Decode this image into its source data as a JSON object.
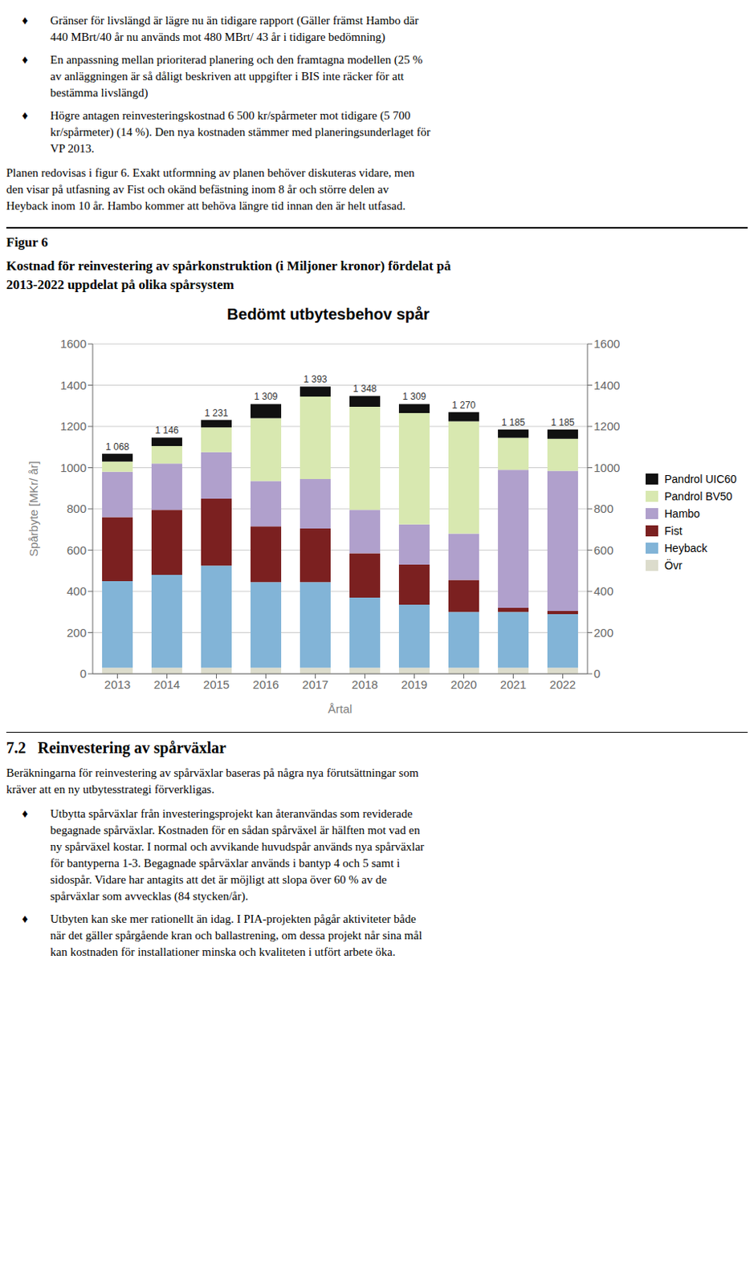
{
  "page_text": {
    "bullet": "♦",
    "bullets_before": [
      "Gränser för livslängd är lägre nu än tidigare rapport (Gäller främst Hambo där\n440 MBrt/40 år nu används mot 480 MBrt/ 43 år i tidigare bedömning)",
      "En anpassning mellan prioriterad planering och den framtagna modellen (25 %\nav anläggningen är så dåligt beskriven att uppgifter i BIS inte räcker för att\nbestämma livslängd)",
      "Högre antagen reinvesteringskostnad 6 500 kr/spårmeter mot tidigare (5 700\nkr/spårmeter) (14 %). Den nya kostnaden stämmer med planeringsunderlaget för\nVP 2013."
    ],
    "paragraph": "Planen redovisas i figur 6. Exakt utformning av planen behöver diskuteras vidare, men\nden visar på utfasning av Fist och okänd befästning inom 8 år och större delen av\nHeyback inom 10 år. Hambo kommer att behöva längre tid innan den är helt utfasad.",
    "figure_label": "Figur 6",
    "caption": [
      "Kostnad för reinvestering av spårkonstruktion (i Miljoner kronor) fördelat på",
      "2013-2022 uppdelat på olika spårsystem"
    ],
    "section_title": "7.2   Reinvestering av spårväxlar",
    "section_paragraph": "Beräkningarna för reinvestering av spårväxlar baseras på några nya förutsättningar som\nkräver att en ny utbytesstrategi förverkligas.",
    "bullets_after": [
      "Utbytta spårväxlar från investeringsprojekt kan återanvändas som reviderade\nbegagnade spårväxlar. Kostnaden för en sådan spårväxel är hälften mot vad en\nny spårväxel kostar. I normal och avvikande huvudspår används nya spårväxlar\nför bantyperna 1-3. Begagnade spårväxlar används i bantyp 4 och 5 samt i\nsidospår. Vidare har antagits att det är möjligt att slopa över 60 % av de\nspårväxlar som avvecklas (84 stycken/år).",
      "Utbyten kan ske mer rationellt än idag. I PIA-projekten pågår aktiviteter både\nnär det gäller spårgående kran och ballastrening, om dessa projekt når sina mål\nkan kostnaden för installationer minska och kvaliteten i utfört arbete öka."
    ]
  },
  "chart_data": {
    "type": "bar",
    "stacked": true,
    "title": "Bedömt utbytesbehov spår",
    "xlabel": "Årtal",
    "ylabel": "Spårbyte [MKr/ år]",
    "categories": [
      2013,
      2014,
      2015,
      2016,
      2017,
      2018,
      2019,
      2020,
      2021,
      2022
    ],
    "series": [
      {
        "name": "Övr",
        "color": "#dcdccc",
        "values": [
          30,
          30,
          30,
          30,
          30,
          30,
          30,
          30,
          30,
          30
        ]
      },
      {
        "name": "Heyback",
        "color": "#82b4d7",
        "values": [
          420,
          450,
          495,
          415,
          415,
          340,
          305,
          270,
          270,
          260
        ]
      },
      {
        "name": "Fist",
        "color": "#7b2020",
        "values": [
          310,
          315,
          325,
          270,
          260,
          215,
          195,
          155,
          20,
          15
        ]
      },
      {
        "name": "Hambo",
        "color": "#b0a0cc",
        "values": [
          220,
          225,
          225,
          220,
          240,
          210,
          195,
          225,
          670,
          680
        ]
      },
      {
        "name": "Pandrol BV50",
        "color": "#d8e8b0",
        "values": [
          50,
          85,
          120,
          305,
          400,
          500,
          540,
          545,
          155,
          155
        ]
      },
      {
        "name": "Pandrol UIC60",
        "color": "#111111",
        "values": [
          38,
          41,
          36,
          69,
          48,
          53,
          44,
          45,
          40,
          45
        ]
      }
    ],
    "totals": [
      1068,
      1146,
      1231,
      1309,
      1393,
      1348,
      1309,
      1270,
      1185,
      1185
    ],
    "total_labels": [
      "1 068",
      "1 146",
      "1 231",
      "1 309",
      "1 393",
      "1 348",
      "1 309",
      "1 270",
      "1 185",
      "1 185"
    ],
    "ylim": [
      0,
      1600
    ],
    "yticks": [
      0,
      200,
      400,
      600,
      800,
      1000,
      1200,
      1400,
      1600
    ],
    "grid": true,
    "legend": "right"
  }
}
